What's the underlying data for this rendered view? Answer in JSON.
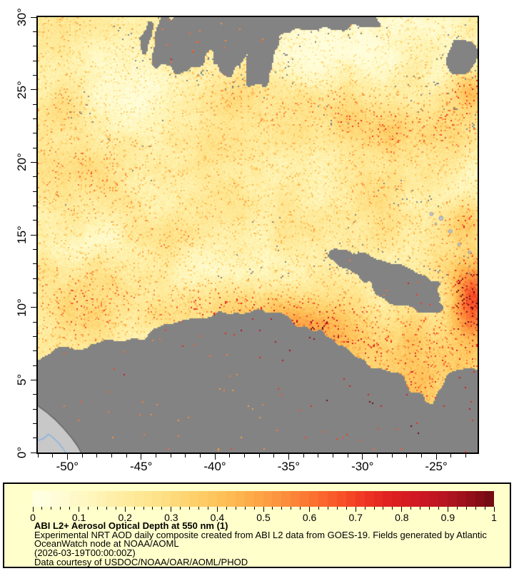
{
  "legend": {
    "title": "ABI L2+ Aerosol Optical Depth at 550 nm (1)",
    "lines": [
      "Experimental NRT AOD daily composite created from ABI L2 data from GOES-19. Fields generated by Atlantic",
      "OceanWatch node at NOAA/AOML",
      "(2026-03-19T00:00:00Z)",
      "Data courtesy of USDOC/NOAA/OAR/AOML/PHOD"
    ]
  },
  "axes": {
    "x": {
      "deg_min": -52,
      "deg_max": -22.2,
      "minor_step": 1,
      "major_step": 5,
      "labels": [
        {
          "v": -50,
          "t": "-50°"
        },
        {
          "v": -45,
          "t": "-45°"
        },
        {
          "v": -40,
          "t": "-40°"
        },
        {
          "v": -35,
          "t": "-35°"
        },
        {
          "v": -30,
          "t": "-30°"
        },
        {
          "v": -25,
          "t": "-25°"
        }
      ]
    },
    "y": {
      "deg_min": 0,
      "deg_max": 30,
      "minor_step": 1,
      "major_step": 5,
      "labels": [
        {
          "v": 30,
          "t": "30°"
        },
        {
          "v": 25,
          "t": "25°"
        },
        {
          "v": 20,
          "t": "20°"
        },
        {
          "v": 15,
          "t": "15°"
        },
        {
          "v": 10,
          "t": "10°"
        },
        {
          "v": 5,
          "t": "5°"
        },
        {
          "v": 0,
          "t": "0°"
        }
      ]
    }
  },
  "colorbar": {
    "min": 0,
    "max": 1,
    "minor_step": 0.02,
    "major_step": 0.1,
    "segments": 50,
    "labels": [
      "0",
      "0.1",
      "0.2",
      "0.3",
      "0.4",
      "0.5",
      "0.6",
      "0.7",
      "0.8",
      "0.9",
      "1"
    ]
  },
  "colors": {
    "panel_bg": "#FFFFCC",
    "frame": "#000000",
    "cloud_nodata": "#838383",
    "land": "#C8C8C8",
    "coastline": "#5E5E5E",
    "river": "#85B3E1",
    "island": "#BFC3CC"
  },
  "render": {
    "base": 0.17,
    "thresh": 0.42,
    "colormap": [
      [
        0.0,
        "#FFFFE5"
      ],
      [
        0.06,
        "#FFFCD6"
      ],
      [
        0.13,
        "#FEF6BB"
      ],
      [
        0.2,
        "#FEEC9F"
      ],
      [
        0.27,
        "#FEE289"
      ],
      [
        0.34,
        "#FED36F"
      ],
      [
        0.41,
        "#FEC158"
      ],
      [
        0.48,
        "#FDA847"
      ],
      [
        0.55,
        "#FC8D3C"
      ],
      [
        0.61,
        "#FB7130"
      ],
      [
        0.67,
        "#F85127"
      ],
      [
        0.72,
        "#EF3423"
      ],
      [
        0.78,
        "#DD2020"
      ],
      [
        0.84,
        "#CE1823"
      ],
      [
        0.9,
        "#B41320"
      ],
      [
        0.95,
        "#930F1A"
      ],
      [
        1.0,
        "#6D0A11"
      ]
    ],
    "spots": [
      {
        "u": 0.11,
        "v": 0.36,
        "rx": 0.13,
        "ry": 0.11,
        "s": 0.1
      },
      {
        "u": 0.08,
        "v": 0.66,
        "rx": 0.1,
        "ry": 0.09,
        "s": 0.13
      },
      {
        "u": 0.52,
        "v": 0.695,
        "rx": 0.28,
        "ry": 0.065,
        "s": 0.24,
        "rot": -7
      },
      {
        "u": 0.8,
        "v": 0.245,
        "rx": 0.26,
        "ry": 0.055,
        "s": 0.15,
        "rot": -9
      },
      {
        "u": 0.99,
        "v": 0.655,
        "rx": 0.05,
        "ry": 0.085,
        "s": 0.42
      },
      {
        "u": 0.985,
        "v": 0.175,
        "rx": 0.06,
        "ry": 0.05,
        "s": 0.22
      },
      {
        "u": 0.8,
        "v": 0.86,
        "rx": 0.23,
        "ry": 0.15,
        "s": 0.16
      },
      {
        "u": 0.97,
        "v": 0.46,
        "rx": 0.05,
        "ry": 0.05,
        "s": 0.16
      },
      {
        "u": 0.56,
        "v": 0.76,
        "rx": 0.1,
        "ry": 0.06,
        "s": 0.12
      },
      {
        "u": 0.3,
        "v": 0.52,
        "rx": 0.12,
        "ry": 0.05,
        "s": 0.06
      },
      {
        "u": 0.62,
        "v": 0.07,
        "rx": 0.11,
        "ry": 0.08,
        "s": -0.09
      },
      {
        "u": 0.8,
        "v": 0.09,
        "rx": 0.13,
        "ry": 0.06,
        "s": -0.07
      },
      {
        "u": 0.42,
        "v": 0.9,
        "rx": 0.12,
        "ry": 0.07,
        "s": -0.08
      },
      {
        "u": 0.24,
        "v": 0.76,
        "rx": 0.09,
        "ry": 0.05,
        "s": -0.06
      },
      {
        "u": 0.88,
        "v": 0.42,
        "rx": 0.09,
        "ry": 0.04,
        "s": -0.05
      },
      {
        "u": 0.13,
        "v": 0.52,
        "rx": 0.09,
        "ry": 0.05,
        "s": -0.05
      }
    ],
    "clouds": [
      {
        "u": 0.4,
        "v": 0.02,
        "rx": 0.15,
        "ry": 0.09,
        "s": 1.0,
        "streak": [
          100,
          6,
          60
        ]
      },
      {
        "u": 0.485,
        "v": 0.115,
        "rx": 0.055,
        "ry": 0.065,
        "s": 0.55,
        "streak": [
          100,
          6,
          60
        ]
      },
      {
        "u": 0.3,
        "v": 0.085,
        "rx": 0.07,
        "ry": 0.045,
        "s": 0.5,
        "streak": [
          100,
          6,
          60
        ]
      },
      {
        "u": 0.6,
        "v": 0.0,
        "rx": 0.1,
        "ry": 0.04,
        "s": 0.5
      },
      {
        "u": 0.73,
        "v": 0.01,
        "rx": 0.07,
        "ry": 0.03,
        "s": 0.45
      },
      {
        "u": 0.965,
        "v": 0.09,
        "rx": 0.05,
        "ry": 0.05,
        "s": 0.9
      },
      {
        "u": 0.86,
        "v": 0.155,
        "rx": 0.07,
        "ry": 0.03,
        "s": 0.42
      },
      {
        "u": 0.84,
        "v": 0.625,
        "rx": 0.12,
        "ry": 0.055,
        "s": 0.85,
        "rot": -18
      },
      {
        "u": 0.7,
        "v": 0.555,
        "rx": 0.06,
        "ry": 0.028,
        "s": 0.5,
        "rot": -15
      },
      {
        "u": 0.8,
        "v": 0.395,
        "rx": 0.05,
        "ry": 0.025,
        "s": 0.35
      },
      {
        "u": 0.52,
        "v": 0.47,
        "rx": 0.07,
        "ry": 0.02,
        "s": 0.3,
        "rot": -10
      },
      {
        "u": 0.45,
        "v": 0.91,
        "rx": 0.09,
        "ry": 0.05,
        "s": -0.5
      },
      {
        "u": 0.3,
        "v": 0.83,
        "rx": 0.05,
        "ry": 0.035,
        "s": -0.4
      },
      {
        "u": 0.67,
        "v": 0.93,
        "rx": 0.05,
        "ry": 0.04,
        "s": -0.4
      },
      {
        "u": 0.585,
        "v": 0.78,
        "rx": 0.045,
        "ry": 0.05,
        "s": -0.35
      },
      {
        "u": 0.9,
        "v": 0.88,
        "rx": 0.06,
        "ry": 0.05,
        "s": -0.45
      },
      {
        "u": 0.22,
        "v": 0.73,
        "rx": 0.06,
        "ry": 0.03,
        "s": -0.3
      }
    ],
    "field": {
      "s": 0.95,
      "ragged": 0.06,
      "boundary": [
        [
          0,
          0.755
        ],
        [
          0.15,
          0.715
        ],
        [
          0.3,
          0.675
        ],
        [
          0.45,
          0.645
        ],
        [
          0.55,
          0.655
        ],
        [
          0.65,
          0.7
        ],
        [
          0.75,
          0.775
        ],
        [
          0.85,
          0.83
        ],
        [
          0.95,
          0.8
        ],
        [
          1,
          0.8
        ]
      ]
    },
    "land_poly": [
      [
        0,
        0.893
      ],
      [
        0.018,
        0.906
      ],
      [
        0.04,
        0.925
      ],
      [
        0.06,
        0.946
      ],
      [
        0.078,
        0.968
      ],
      [
        0.092,
        0.988
      ],
      [
        0.098,
        1.0
      ],
      [
        0,
        1.0
      ]
    ],
    "river": [
      [
        0,
        0.972
      ],
      [
        0.013,
        0.968
      ],
      [
        0.024,
        0.958
      ],
      [
        0.034,
        0.965
      ],
      [
        0.047,
        0.978
      ],
      [
        0.058,
        0.992
      ],
      [
        0.063,
        1.0
      ]
    ],
    "islands": [
      {
        "u": 0.895,
        "v": 0.452,
        "r": 2.5
      },
      {
        "u": 0.917,
        "v": 0.462,
        "r": 3
      },
      {
        "u": 0.938,
        "v": 0.492,
        "r": 2.5
      },
      {
        "u": 0.958,
        "v": 0.522,
        "r": 2
      },
      {
        "u": 0.982,
        "v": 0.54,
        "r": 2
      },
      {
        "u": 0.905,
        "v": 0.475,
        "r": 1.5
      }
    ]
  },
  "chart_data": {
    "type": "heatmap",
    "title": "ABI L2+ Aerosol Optical Depth at 550 nm (1)",
    "xlabel": "",
    "ylabel": "",
    "x_tick_labels": [
      "-50°",
      "-45°",
      "-40°",
      "-35°",
      "-30°",
      "-25°"
    ],
    "y_tick_labels": [
      "30°",
      "25°",
      "20°",
      "15°",
      "10°",
      "5°",
      "0°"
    ],
    "x_range_deg": [
      -52,
      -22.2
    ],
    "y_range_deg": [
      0,
      30
    ],
    "value_range": [
      0,
      1
    ],
    "colorbar_tick_labels": [
      "0",
      "0.1",
      "0.2",
      "0.3",
      "0.4",
      "0.5",
      "0.6",
      "0.7",
      "0.8",
      "0.9",
      "1"
    ],
    "legend_position": "bottom",
    "grid": false,
    "no_data": "gray cloud-masked regions",
    "coarse_aod_grid_10x10_lat30_to_0": [
      [
        0.25,
        0.25,
        0.3,
        null,
        0.3,
        0.3,
        0.25,
        0.25,
        0.2,
        null
      ],
      [
        0.25,
        0.3,
        0.3,
        null,
        0.3,
        0.35,
        0.3,
        0.25,
        0.2,
        0.35
      ],
      [
        0.3,
        0.35,
        0.3,
        0.3,
        0.3,
        0.35,
        0.4,
        0.35,
        0.3,
        0.45
      ],
      [
        0.3,
        0.3,
        0.25,
        0.3,
        0.3,
        0.35,
        0.4,
        0.45,
        0.35,
        0.3
      ],
      [
        0.25,
        0.25,
        0.3,
        0.3,
        0.3,
        0.3,
        0.35,
        0.3,
        0.3,
        0.35
      ],
      [
        0.3,
        0.3,
        0.25,
        0.3,
        0.35,
        0.4,
        0.4,
        0.35,
        null,
        0.6
      ],
      [
        0.35,
        null,
        0.3,
        0.45,
        0.55,
        0.5,
        0.45,
        null,
        0.5,
        0.8
      ],
      [
        null,
        null,
        0.35,
        0.4,
        null,
        0.5,
        0.55,
        0.6,
        0.55,
        0.7
      ],
      [
        null,
        null,
        0.3,
        null,
        null,
        null,
        0.5,
        0.6,
        0.55,
        0.6
      ],
      [
        null,
        null,
        0.3,
        0.35,
        null,
        null,
        null,
        0.5,
        null,
        0.55
      ]
    ],
    "features": [
      "Saharan dust plume band of high AOD (0.4-0.9) crossing lower-center to right edge near 8-12N",
      "Extreme AOD (0.9-1.0) cluster at east edge near 10N 23W",
      "Cloud/no-data gray mask over much of the area south of ~10N and a feathered cloud mass at top center",
      "South America coast (light gray land) in bottom-left corner with river",
      "Cape Verde islands drawn as small light gray patches near 15N 24W"
    ]
  }
}
